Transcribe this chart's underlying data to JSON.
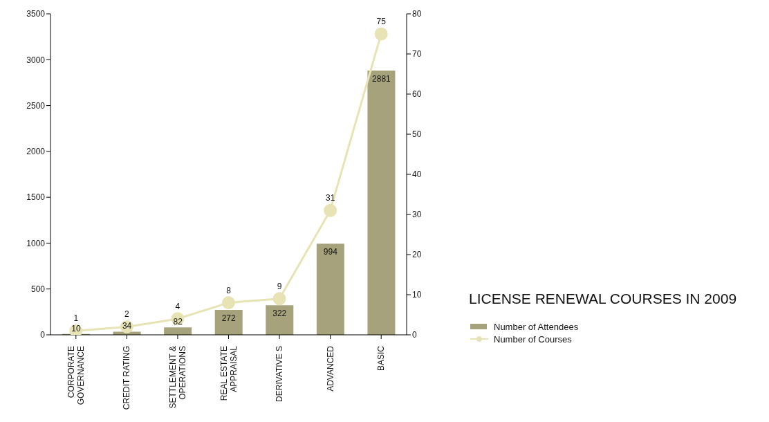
{
  "chart_data": {
    "type": "bar",
    "title": "LICENSE RENEWAL COURSES IN 2009",
    "categories": [
      "CORPORATE\nGOVERNANCE",
      "CREDIT RATING",
      "SETTLEMENT &\nOPERATIONS",
      "REAL ESTATE\nAPPRAISAL",
      "DERIVATIVE S",
      "ADVANCED",
      "BASIC"
    ],
    "series": [
      {
        "name": "Number of Attendees",
        "color": "#a6a37c",
        "values": [
          10,
          34,
          82,
          272,
          322,
          994,
          2881
        ]
      },
      {
        "name": "Number of Courses",
        "type": "line",
        "axis": "y2",
        "color": "#e8e3b5",
        "values": [
          1,
          2,
          4,
          8,
          9,
          31,
          75
        ]
      }
    ],
    "ylim": [
      0,
      3500
    ],
    "yticks": [
      0,
      500,
      1000,
      1500,
      2000,
      2500,
      3000,
      3500
    ],
    "y2lim": [
      0,
      80
    ],
    "y2ticks": [
      0,
      10,
      20,
      30,
      40,
      50,
      60,
      70,
      80
    ],
    "data_labels": true,
    "grid": false,
    "legend": "right",
    "marker": "circle",
    "line_style": "solid"
  }
}
